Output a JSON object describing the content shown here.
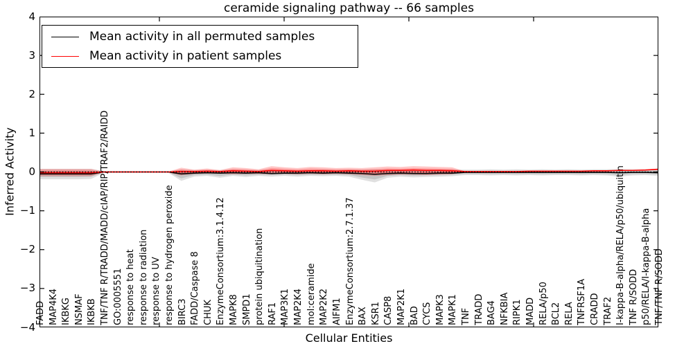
{
  "figure": {
    "title": "ceramide signaling pathway -- 66 samples",
    "background_color": "#ffffff"
  },
  "chart_data": {
    "type": "line",
    "title": "ceramide signaling pathway -- 66 samples",
    "xlabel": "Cellular Entities",
    "ylabel": "Inferred Activity",
    "ylim": [
      -4,
      4
    ],
    "ytick_labels": [
      "4",
      "3",
      "2",
      "1",
      "0",
      "−1",
      "−2",
      "−3",
      "−4"
    ],
    "yticks": [
      4,
      3,
      2,
      1,
      0,
      -1,
      -2,
      -3,
      -4
    ],
    "grid": false,
    "legend_position": "upper left",
    "baseline": {
      "value": 0,
      "style": "dotted",
      "color": "#000000"
    },
    "categories": [
      "FADD",
      "MAP4K4",
      "IKBKG",
      "NSMAF",
      "IKBKB",
      "TNF/TNF R/TRADD/MADD/cIAP/RIP/TRAF2/RAIDD",
      "GO:0005551",
      "response to heat",
      "response to radiation",
      "response to UV",
      "response to hydrogen peroxide",
      "BIRC3",
      "FADD/Caspase 8",
      "CHUK",
      "EnzymeConsortium:3.1.4.12",
      "MAPK8",
      "SMPD1",
      "protein ubiquitination",
      "RAF1",
      "MAP3K1",
      "MAP2K4",
      "mol:ceramide",
      "MAP2K2",
      "AIFM1",
      "EnzymeConsortium:2.7.1.37",
      "BAX",
      "KSR1",
      "CASP8",
      "MAP2K1",
      "BAD",
      "CYCS",
      "MAPK3",
      "MAPK1",
      "TNF",
      "TRADD",
      "BAG4",
      "NFKBIA",
      "RIPK1",
      "MADD",
      "RELA/p50",
      "BCL2",
      "RELA",
      "TNFRSF1A",
      "CRADD",
      "TRAF2",
      "I-kappa-B-alpha/RELA/p50/ubiquitin",
      "TNF R/SODD",
      "p50/RELA/I-kappa-B-alpha",
      "TNF/TNF R/SODD"
    ],
    "series": [
      {
        "name": "Mean activity in all permuted samples",
        "color": "#000000",
        "style": "solid",
        "values": [
          -0.05,
          -0.05,
          -0.05,
          -0.05,
          -0.05,
          0,
          0,
          0,
          0,
          0,
          0,
          -0.05,
          -0.03,
          -0.02,
          -0.03,
          -0.02,
          -0.03,
          -0.02,
          -0.04,
          -0.03,
          -0.03,
          -0.02,
          -0.03,
          -0.02,
          -0.03,
          -0.04,
          -0.06,
          -0.04,
          -0.03,
          -0.04,
          -0.04,
          -0.03,
          -0.03,
          -0.01,
          -0.01,
          -0.01,
          -0.01,
          -0.01,
          -0.01,
          -0.01,
          -0.01,
          -0.01,
          -0.01,
          -0.01,
          -0.01,
          -0.02,
          -0.01,
          -0.01,
          -0.02
        ]
      },
      {
        "name": "Mean activity in patient samples",
        "color": "#ff0000",
        "style": "solid",
        "values": [
          -0.02,
          -0.02,
          -0.02,
          -0.02,
          -0.02,
          0,
          0,
          0,
          0,
          0,
          0,
          0.01,
          0.01,
          0.02,
          0.01,
          0.03,
          0.02,
          0.01,
          0.04,
          0.03,
          0.02,
          0.03,
          0.03,
          0.02,
          0.03,
          0.02,
          0.02,
          0.04,
          0.04,
          0.05,
          0.04,
          0.04,
          0.03,
          0.01,
          0.01,
          0.01,
          0.01,
          0.01,
          0.02,
          0.02,
          0.02,
          0.02,
          0.02,
          0.03,
          0.03,
          0.04,
          0.04,
          0.05,
          0.07
        ]
      }
    ],
    "bands": [
      {
        "name": "permuted-samples-range",
        "color": "#000000",
        "fill_opacity": 0.12,
        "hi": [
          0.08,
          0.08,
          0.08,
          0.08,
          0.08,
          0.02,
          0.02,
          0.02,
          0.02,
          0.02,
          0.02,
          0.06,
          0.05,
          0.05,
          0.05,
          0.06,
          0.05,
          0.05,
          0.06,
          0.05,
          0.05,
          0.05,
          0.06,
          0.05,
          0.06,
          0.06,
          0.07,
          0.06,
          0.06,
          0.06,
          0.06,
          0.06,
          0.06,
          0.06,
          0.06,
          0.07,
          0.06,
          0.07,
          0.06,
          0.07,
          0.06,
          0.07,
          0.06,
          0.07,
          0.07,
          0.08,
          0.07,
          0.07,
          0.08
        ],
        "lo": [
          -0.19,
          -0.19,
          -0.19,
          -0.19,
          -0.18,
          -0.02,
          -0.02,
          -0.02,
          -0.02,
          -0.02,
          -0.02,
          -0.23,
          -0.12,
          -0.1,
          -0.15,
          -0.1,
          -0.13,
          -0.1,
          -0.12,
          -0.1,
          -0.12,
          -0.1,
          -0.11,
          -0.1,
          -0.12,
          -0.2,
          -0.27,
          -0.15,
          -0.12,
          -0.14,
          -0.13,
          -0.12,
          -0.11,
          -0.08,
          -0.08,
          -0.09,
          -0.08,
          -0.09,
          -0.08,
          -0.09,
          -0.08,
          -0.08,
          -0.09,
          -0.08,
          -0.09,
          -0.12,
          -0.09,
          -0.08,
          -0.1
        ]
      },
      {
        "name": "patient-samples-range",
        "color": "#ff0000",
        "fill_opacity": 0.22,
        "hi": [
          0.08,
          0.08,
          0.08,
          0.08,
          0.08,
          0.01,
          0.01,
          0.01,
          0.01,
          0.01,
          0.01,
          0.11,
          0.06,
          0.09,
          0.05,
          0.12,
          0.1,
          0.07,
          0.15,
          0.12,
          0.1,
          0.13,
          0.12,
          0.1,
          0.11,
          0.1,
          0.12,
          0.14,
          0.13,
          0.15,
          0.14,
          0.13,
          0.12,
          0.02,
          0.02,
          0.02,
          0.02,
          0.02,
          0.03,
          0.03,
          0.03,
          0.03,
          0.03,
          0.04,
          0.04,
          0.05,
          0.05,
          0.06,
          0.09
        ],
        "lo": [
          -0.11,
          -0.11,
          -0.11,
          -0.11,
          -0.11,
          -0.01,
          -0.01,
          -0.01,
          -0.01,
          -0.01,
          -0.01,
          -0.09,
          -0.05,
          -0.04,
          -0.04,
          -0.06,
          -0.05,
          -0.05,
          -0.06,
          -0.05,
          -0.06,
          -0.05,
          -0.06,
          -0.05,
          -0.06,
          -0.08,
          -0.1,
          -0.08,
          -0.07,
          -0.07,
          -0.08,
          -0.07,
          -0.06,
          0,
          0,
          0,
          0,
          0,
          0.01,
          0.01,
          0.01,
          0.01,
          0.01,
          0.02,
          0.02,
          0.03,
          0.03,
          0.04,
          0.05
        ]
      }
    ]
  }
}
